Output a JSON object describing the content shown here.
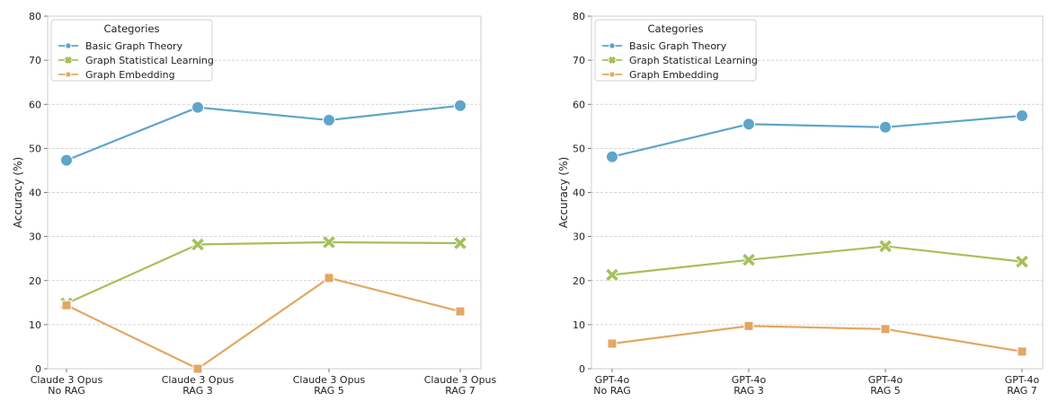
{
  "colors": {
    "basic": "#5ea5c9",
    "statistical": "#a7bf5b",
    "embedding": "#e2a763"
  },
  "chart_data": [
    {
      "type": "line",
      "title": "",
      "xlabel": "",
      "ylabel": "Accuracy (%)",
      "ylim": [
        0,
        80
      ],
      "yticks": [
        "0",
        "10",
        "20",
        "30",
        "40",
        "50",
        "60",
        "70",
        "80"
      ],
      "grid": "horizontal-dashed",
      "categories": [
        [
          "Claude 3 Opus",
          "No RAG"
        ],
        [
          "Claude 3 Opus",
          "RAG 3"
        ],
        [
          "Claude 3 Opus",
          "RAG 5"
        ],
        [
          "Claude 3 Opus",
          "RAG 7"
        ]
      ],
      "legend": {
        "title": "Categories",
        "placement": "top-left"
      },
      "series": [
        {
          "name": "Basic Graph Theory",
          "marker": "circle",
          "values": [
            47.3,
            59.3,
            56.4,
            59.7
          ]
        },
        {
          "name": "Graph Statistical Learning",
          "marker": "x",
          "values": [
            14.8,
            28.2,
            28.7,
            28.5
          ]
        },
        {
          "name": "Graph Embedding",
          "marker": "square",
          "values": [
            14.4,
            0.0,
            20.6,
            13.0
          ]
        }
      ]
    },
    {
      "type": "line",
      "title": "",
      "xlabel": "",
      "ylabel": "Accuracy (%)",
      "ylim": [
        0,
        80
      ],
      "yticks": [
        "0",
        "10",
        "20",
        "30",
        "40",
        "50",
        "60",
        "70",
        "80"
      ],
      "grid": "horizontal-dashed",
      "categories": [
        [
          "GPT-4o",
          "No RAG"
        ],
        [
          "GPT-4o",
          "RAG 3"
        ],
        [
          "GPT-4o",
          "RAG 5"
        ],
        [
          "GPT-4o",
          "RAG 7"
        ]
      ],
      "legend": {
        "title": "Categories",
        "placement": "top-left"
      },
      "series": [
        {
          "name": "Basic Graph Theory",
          "marker": "circle",
          "values": [
            48.1,
            55.5,
            54.8,
            57.4
          ]
        },
        {
          "name": "Graph Statistical Learning",
          "marker": "x",
          "values": [
            21.3,
            24.7,
            27.8,
            24.3
          ]
        },
        {
          "name": "Graph Embedding",
          "marker": "square",
          "values": [
            5.7,
            9.7,
            9.0,
            3.9
          ]
        }
      ]
    }
  ]
}
